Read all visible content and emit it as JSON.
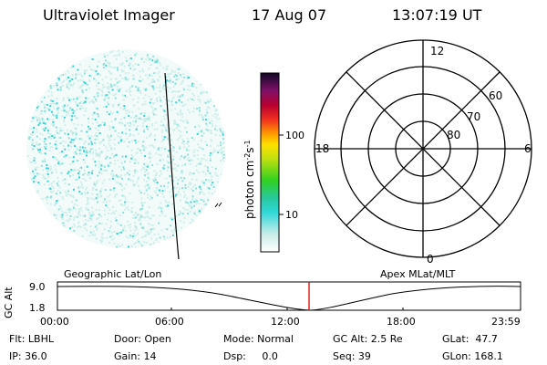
{
  "header": {
    "title": "Ultraviolet Imager",
    "date": "17 Aug 07",
    "time": "13:07:19 UT"
  },
  "colorbar": {
    "label_html": "photon cm<tspan baseline-shift='super' font-size='8'>-2</tspan>s<tspan baseline-shift='super' font-size='8'>-1</tspan>",
    "ticks": [
      "100",
      "10"
    ]
  },
  "polar_plot": {
    "mlt_labels": {
      "top": "12",
      "left": "18",
      "right": "6",
      "bottom": "0"
    },
    "lat_labels": [
      "60",
      "70",
      "80"
    ]
  },
  "orbit_panel": {
    "left_title": "Geographic Lat/Lon",
    "right_title": "Apex MLat/MLT",
    "y_axis_label": "GC Alt",
    "y_ticks": [
      "9.0",
      "1.8"
    ],
    "x_ticks": [
      "00:00",
      "06:00",
      "12:00",
      "18:00",
      "23:59"
    ]
  },
  "status": {
    "row1": [
      "Flt: LBHL",
      "Door: Open",
      "Mode: Normal",
      "GC Alt: 2.5 Re",
      "GLat:  47.7"
    ],
    "row2": [
      "IP: 36.0",
      "Gain: 14",
      "Dsp:     0.0",
      "Seq: 39",
      "GLon: 168.1"
    ]
  }
}
